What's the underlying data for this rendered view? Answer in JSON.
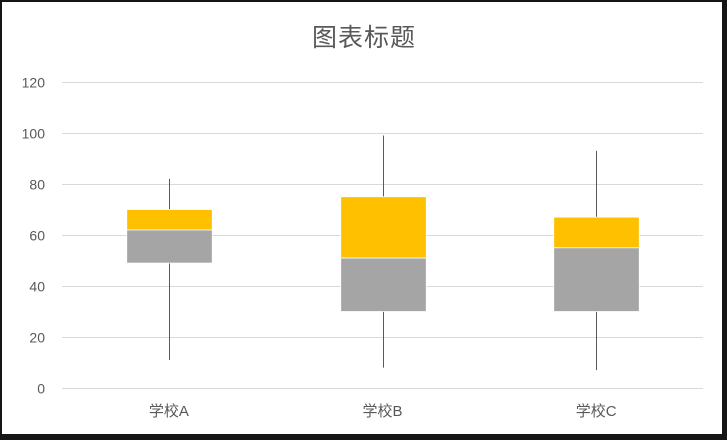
{
  "chart_data": {
    "type": "bar",
    "stacked": true,
    "title": "图表标题",
    "categories": [
      "学校A",
      "学校B",
      "学校C"
    ],
    "boxes": [
      {
        "min": 11,
        "q1": 49,
        "median": 62,
        "q3": 70,
        "max": 82
      },
      {
        "min": 8,
        "q1": 30,
        "median": 51,
        "q3": 75,
        "max": 99
      },
      {
        "min": 7,
        "q1": 30,
        "median": 55,
        "q3": 67,
        "max": 93
      }
    ],
    "ylim": [
      0,
      120
    ],
    "yticks": [
      0,
      20,
      40,
      60,
      80,
      100,
      120
    ],
    "grid": true,
    "legend": false
  },
  "colors": {
    "upper_box": "#FFC000",
    "lower_box": "#A5A5A5",
    "whisker": "#595959",
    "gridline": "#D9D9D9",
    "text": "#595959",
    "background": "#FFFFFF"
  }
}
